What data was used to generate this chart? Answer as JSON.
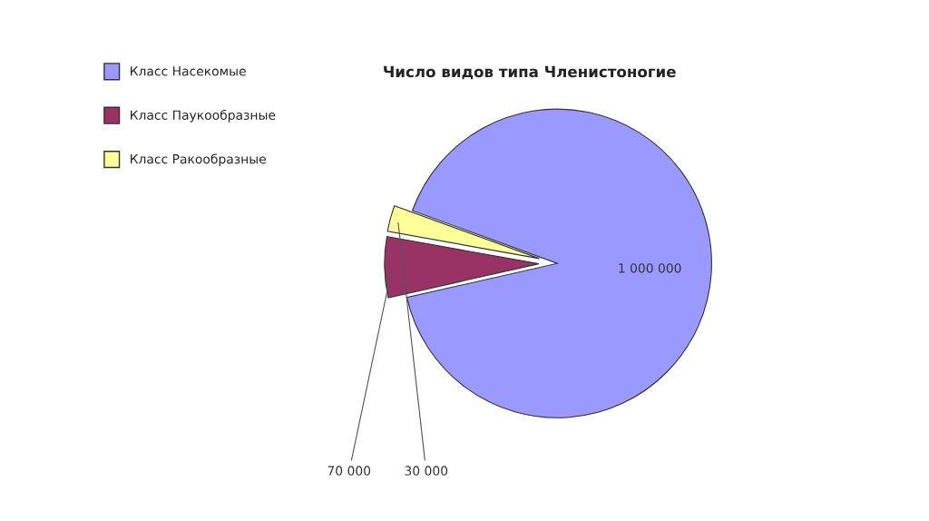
{
  "chart_data": {
    "type": "pie",
    "title": "Число видов типа Членистоногие",
    "categories": [
      "Класс Насекомые",
      "Класс Паукообразные",
      "Класс Ракообразные"
    ],
    "values": [
      1000000,
      70000,
      30000
    ],
    "colors": [
      "#9999ff",
      "#993366",
      "#ffff99"
    ],
    "value_labels": [
      "1 000 000",
      "70 000",
      "30 000"
    ],
    "legend": "top left"
  }
}
